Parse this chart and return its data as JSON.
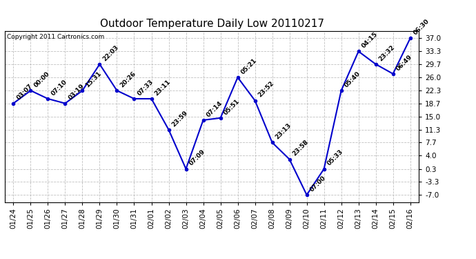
{
  "title": "Outdoor Temperature Daily Low 20110217",
  "copyright": "Copyright 2011 Cartronics.com",
  "x_labels": [
    "01/24",
    "01/25",
    "01/26",
    "01/27",
    "01/28",
    "01/29",
    "01/30",
    "01/31",
    "02/01",
    "02/02",
    "02/03",
    "02/04",
    "02/05",
    "02/06",
    "02/07",
    "02/08",
    "02/09",
    "02/10",
    "02/11",
    "02/12",
    "02/13",
    "02/14",
    "02/15",
    "02/16"
  ],
  "y_values": [
    18.7,
    22.3,
    20.0,
    18.7,
    22.3,
    29.7,
    22.3,
    20.0,
    20.0,
    11.3,
    0.3,
    14.0,
    14.6,
    26.0,
    19.5,
    7.7,
    3.0,
    -7.0,
    0.3,
    22.3,
    33.3,
    29.7,
    27.0,
    37.0
  ],
  "annotations": [
    "03:07",
    "00:00",
    "07:10",
    "03:19",
    "15:31",
    "22:03",
    "20:26",
    "07:33",
    "23:11",
    "23:59",
    "07:09",
    "07:14",
    "05:51",
    "05:21",
    "23:52",
    "23:13",
    "23:58",
    "07:00",
    "05:33",
    "05:40",
    "04:15",
    "23:32",
    "06:49",
    "06:30"
  ],
  "y_ticks": [
    -7.0,
    -3.3,
    0.3,
    4.0,
    7.7,
    11.3,
    15.0,
    18.7,
    22.3,
    26.0,
    29.7,
    33.3,
    37.0
  ],
  "ylim": [
    -9.0,
    39.0
  ],
  "line_color": "#0000cc",
  "marker_color": "#0000cc",
  "bg_color": "#ffffff",
  "grid_color": "#b0b0b0",
  "title_fontsize": 11,
  "annotation_fontsize": 6.5,
  "tick_fontsize": 7.5,
  "copyright_fontsize": 6.5
}
